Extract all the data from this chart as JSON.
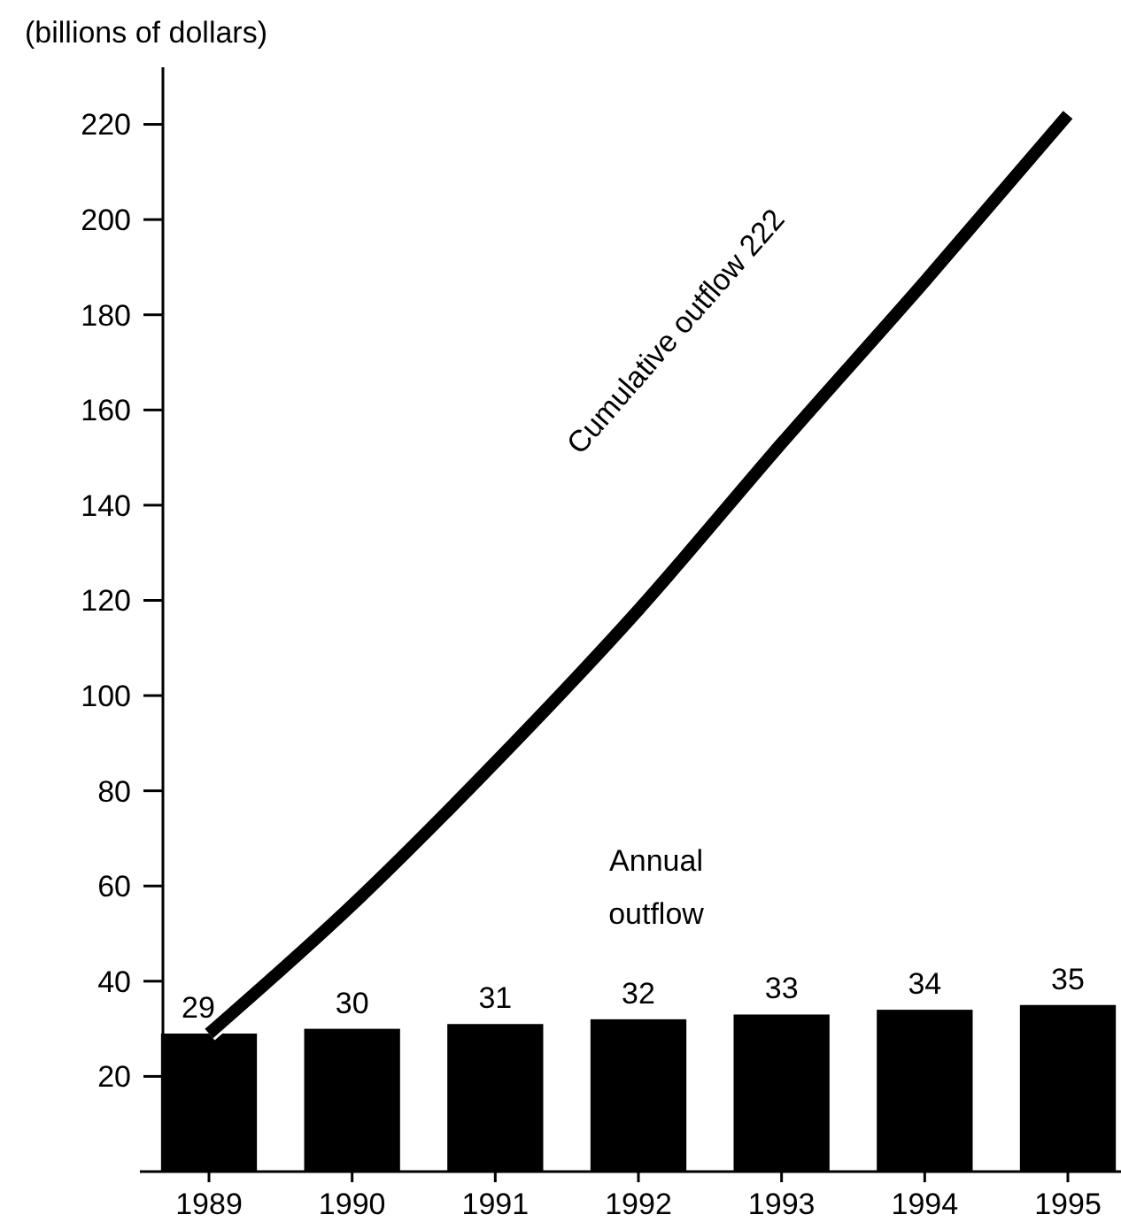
{
  "chart_data": {
    "type": "bar",
    "ylabel": "(billions of dollars)",
    "categories": [
      "1989",
      "1990",
      "1991",
      "1992",
      "1993",
      "1994",
      "1995"
    ],
    "series": [
      {
        "name": "Annual outflow",
        "color": "#000000",
        "values": [
          29,
          30,
          31,
          32,
          33,
          34,
          35
        ],
        "value_labels": [
          "29",
          "30",
          "31",
          "32",
          "33",
          "34",
          "35"
        ]
      },
      {
        "name": "Cumulative outflow 222",
        "type": "line",
        "color": "#000000",
        "values": [
          29,
          56,
          86,
          118,
          153,
          187,
          222
        ]
      }
    ],
    "ylim": [
      0,
      232
    ],
    "yticks": [
      20,
      40,
      60,
      80,
      100,
      120,
      140,
      160,
      180,
      200,
      220
    ],
    "grid": false
  }
}
